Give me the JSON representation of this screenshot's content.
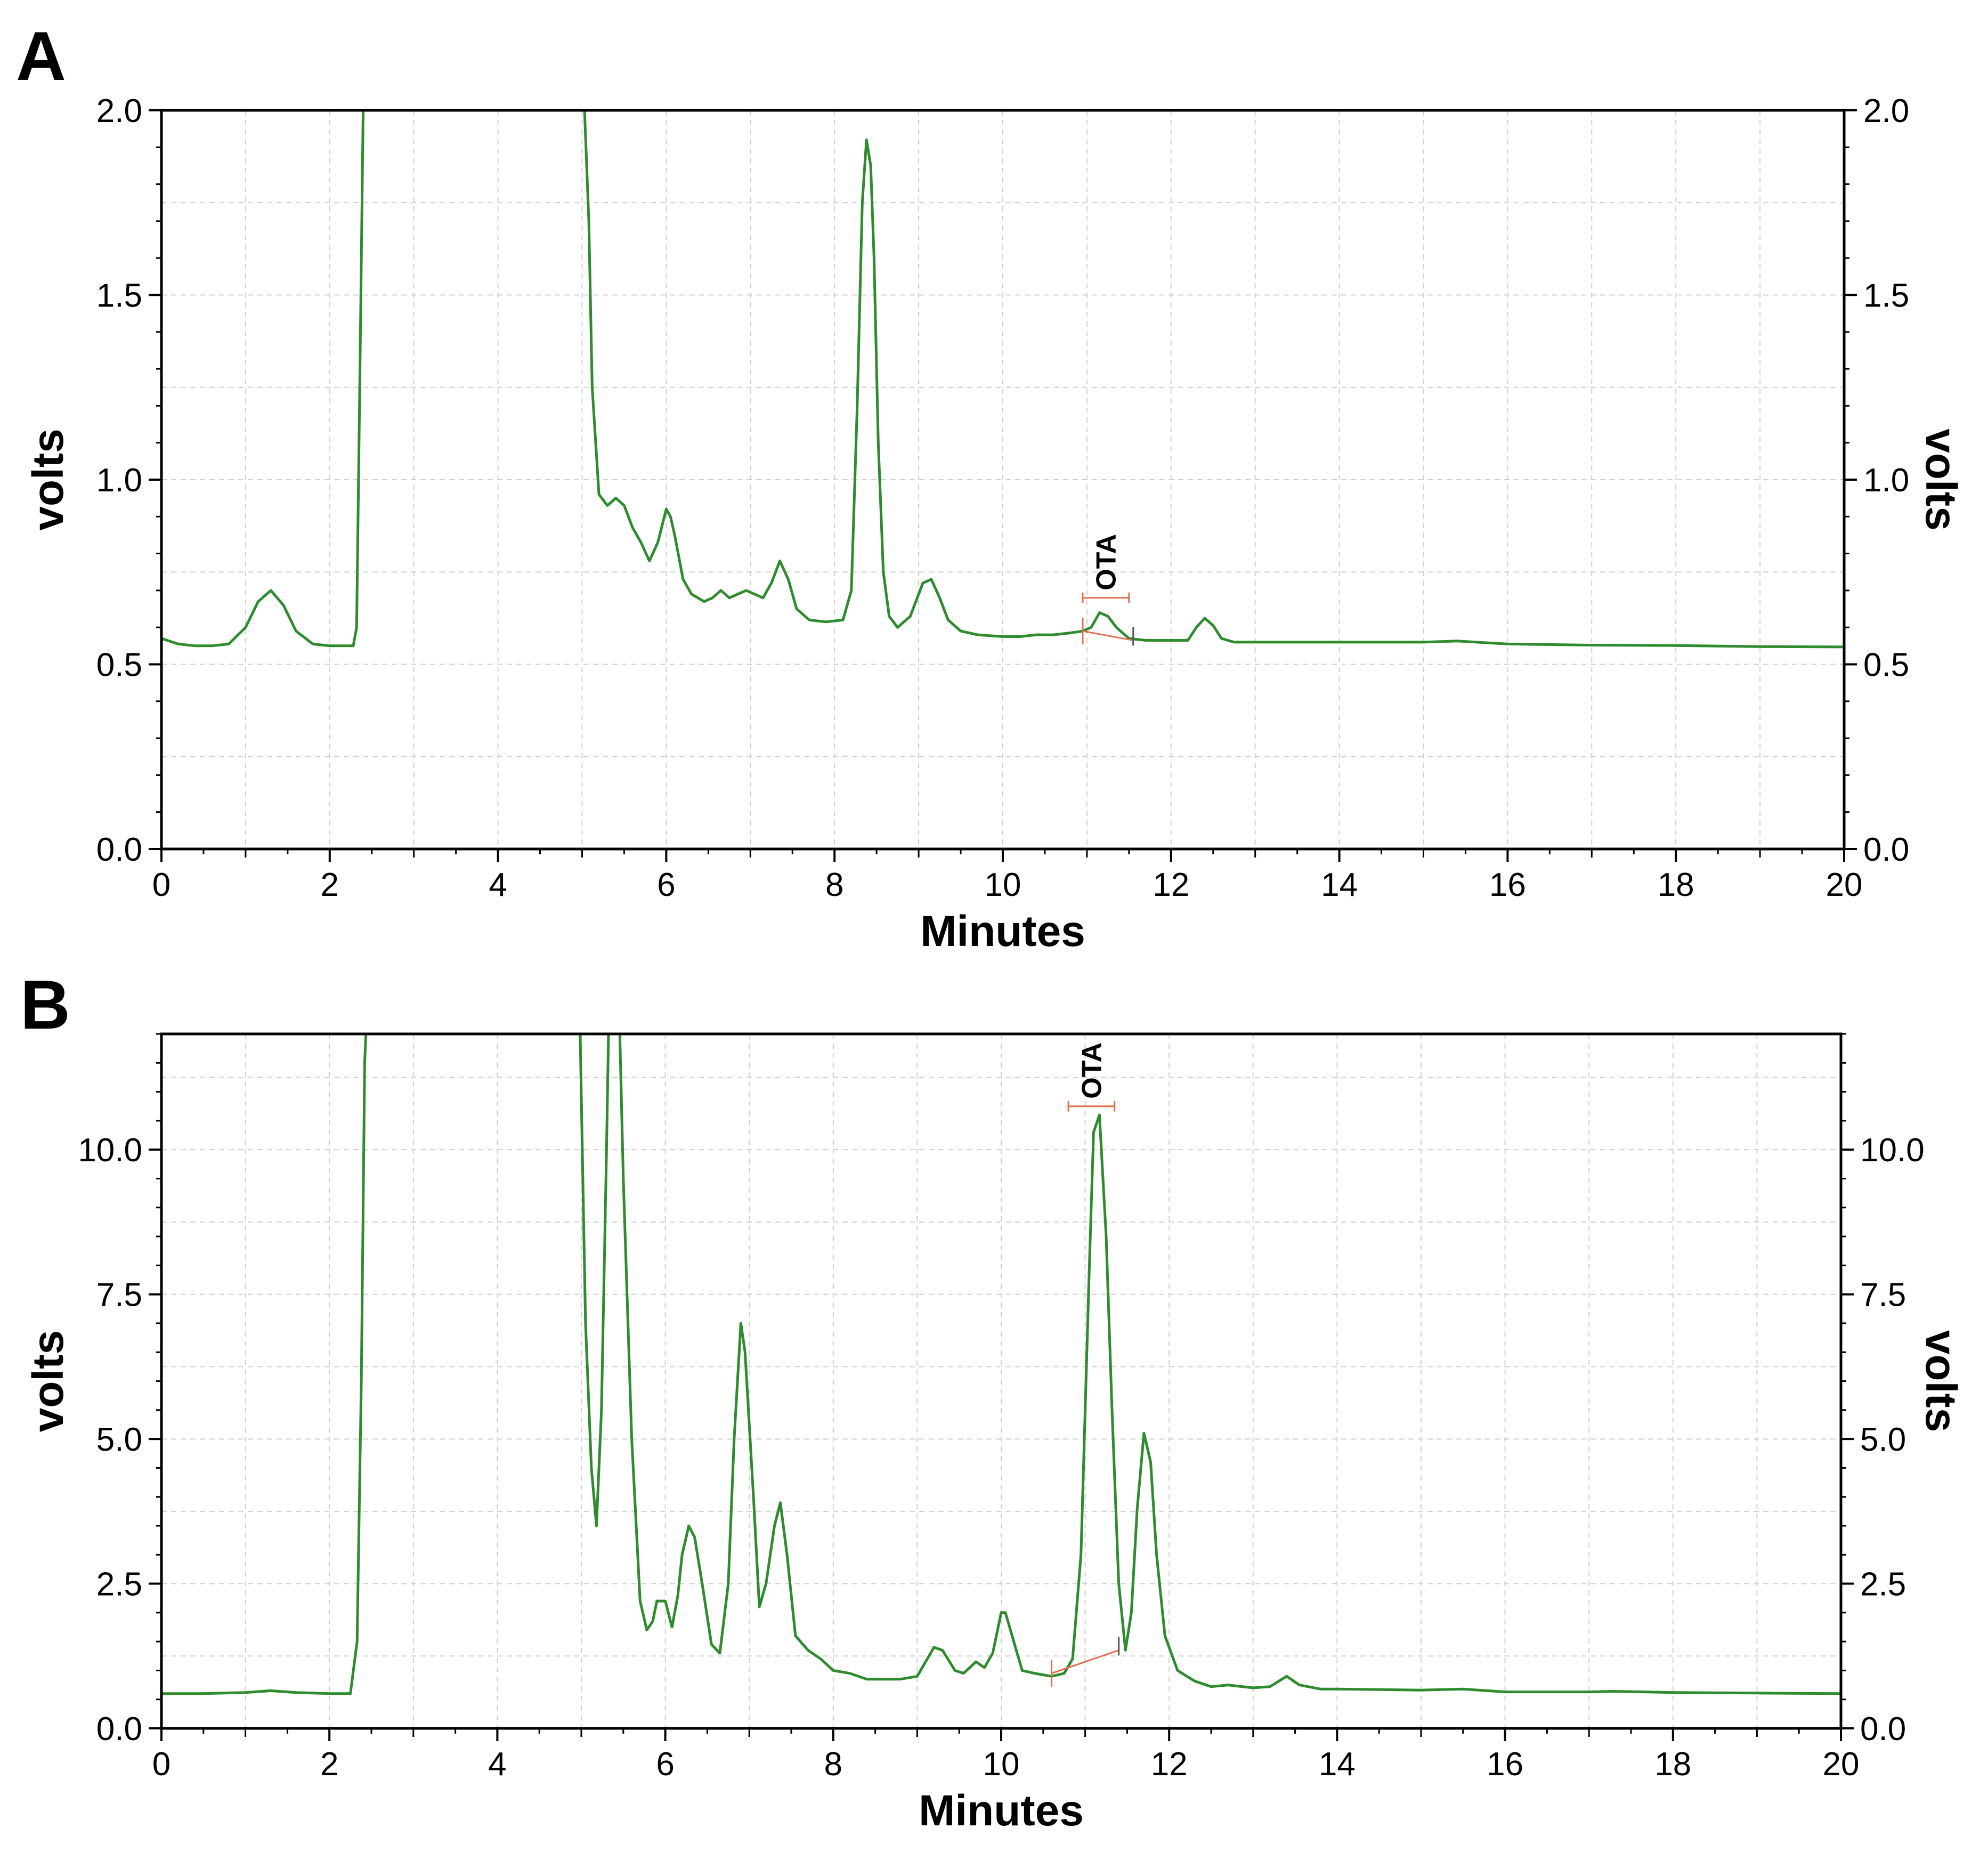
{
  "colors": {
    "trace": "#2e8b2e",
    "annotation": "#e07050",
    "axis": "#000000",
    "grid": "#d0d0d0"
  },
  "chart_data": [
    {
      "type": "line",
      "panel": "A",
      "title": "",
      "xlabel": "Minutes",
      "ylabel_left": "volts",
      "ylabel_right": "volts",
      "xlim": [
        0,
        20
      ],
      "ylim": [
        0,
        2.0
      ],
      "xticks": [
        0,
        2,
        4,
        6,
        8,
        10,
        12,
        14,
        16,
        18,
        20
      ],
      "xtick_labels": [
        "0",
        "2",
        "4",
        "6",
        "8",
        "10",
        "12",
        "14",
        "16",
        "18",
        "20"
      ],
      "yticks": [
        0.0,
        0.5,
        1.0,
        1.5,
        2.0
      ],
      "ytick_labels": [
        "0.0",
        "0.5",
        "1.0",
        "1.5",
        "2.0"
      ],
      "series": [
        {
          "name": "chromatogram",
          "x": [
            0,
            0.2,
            0.4,
            0.6,
            0.8,
            1.0,
            1.15,
            1.3,
            1.45,
            1.6,
            1.8,
            2.0,
            2.2,
            2.28,
            2.32,
            2.36,
            2.4,
            5.02,
            5.08,
            5.12,
            5.2,
            5.3,
            5.4,
            5.5,
            5.6,
            5.7,
            5.8,
            5.9,
            6.0,
            6.05,
            6.1,
            6.2,
            6.3,
            6.45,
            6.55,
            6.65,
            6.75,
            6.85,
            6.95,
            7.05,
            7.15,
            7.25,
            7.35,
            7.45,
            7.55,
            7.7,
            7.9,
            8.1,
            8.2,
            8.27,
            8.33,
            8.38,
            8.43,
            8.47,
            8.52,
            8.58,
            8.65,
            8.75,
            8.9,
            9.05,
            9.15,
            9.25,
            9.35,
            9.5,
            9.7,
            10.0,
            10.2,
            10.4,
            10.6,
            10.8,
            10.95,
            11.05,
            11.15,
            11.25,
            11.35,
            11.5,
            11.7,
            12.0,
            12.2,
            12.3,
            12.4,
            12.5,
            12.6,
            12.75,
            13.0,
            14.0,
            15.0,
            15.4,
            16.0,
            17.0,
            18.0,
            19.0,
            20.0
          ],
          "values": [
            0.57,
            0.555,
            0.55,
            0.55,
            0.555,
            0.6,
            0.67,
            0.7,
            0.66,
            0.59,
            0.555,
            0.55,
            0.55,
            0.55,
            0.6,
            1.3,
            2.05,
            2.05,
            1.7,
            1.25,
            0.96,
            0.93,
            0.95,
            0.93,
            0.87,
            0.83,
            0.78,
            0.83,
            0.92,
            0.9,
            0.85,
            0.73,
            0.69,
            0.67,
            0.68,
            0.7,
            0.68,
            0.69,
            0.7,
            0.69,
            0.68,
            0.72,
            0.78,
            0.73,
            0.65,
            0.62,
            0.615,
            0.62,
            0.7,
            1.2,
            1.75,
            1.92,
            1.85,
            1.6,
            1.1,
            0.75,
            0.63,
            0.6,
            0.63,
            0.72,
            0.73,
            0.68,
            0.62,
            0.59,
            0.58,
            0.575,
            0.575,
            0.58,
            0.58,
            0.585,
            0.59,
            0.6,
            0.64,
            0.63,
            0.6,
            0.57,
            0.565,
            0.565,
            0.565,
            0.6,
            0.625,
            0.605,
            0.57,
            0.56,
            0.56,
            0.56,
            0.56,
            0.563,
            0.555,
            0.552,
            0.551,
            0.548,
            0.547
          ]
        }
      ],
      "annotations": [
        {
          "label": "OTA",
          "x_start": 10.95,
          "x_end": 11.5,
          "y": 0.68,
          "baseline": [
            [
              10.95,
              0.59
            ],
            [
              11.55,
              0.565
            ]
          ]
        }
      ]
    },
    {
      "type": "line",
      "panel": "B",
      "title": "",
      "xlabel": "Minutes",
      "ylabel_left": "volts",
      "ylabel_right": "volts",
      "xlim": [
        0,
        20
      ],
      "ylim": [
        0,
        12.0
      ],
      "xticks": [
        0,
        2,
        4,
        6,
        8,
        10,
        12,
        14,
        16,
        18,
        20
      ],
      "xtick_labels": [
        "0",
        "2",
        "4",
        "6",
        "8",
        "10",
        "12",
        "14",
        "16",
        "18",
        "20"
      ],
      "yticks": [
        0.0,
        2.5,
        5.0,
        7.5,
        10.0
      ],
      "ytick_labels": [
        "0.0",
        "2.5",
        "5.0",
        "7.5",
        "10.0"
      ],
      "series": [
        {
          "name": "chromatogram",
          "x": [
            0,
            0.5,
            1.0,
            1.3,
            1.6,
            2.0,
            2.25,
            2.33,
            2.38,
            2.42,
            2.45,
            4.98,
            5.05,
            5.12,
            5.18,
            5.24,
            5.3,
            5.33,
            5.45,
            5.5,
            5.6,
            5.7,
            5.78,
            5.85,
            5.9,
            6.0,
            6.08,
            6.15,
            6.2,
            6.28,
            6.35,
            6.45,
            6.55,
            6.65,
            6.75,
            6.82,
            6.9,
            6.95,
            7.05,
            7.12,
            7.2,
            7.3,
            7.37,
            7.45,
            7.55,
            7.7,
            7.85,
            8.0,
            8.2,
            8.4,
            8.6,
            8.8,
            9.0,
            9.2,
            9.3,
            9.45,
            9.55,
            9.7,
            9.8,
            9.9,
            10.0,
            10.05,
            10.15,
            10.25,
            10.4,
            10.6,
            10.75,
            10.85,
            10.95,
            11.05,
            11.1,
            11.17,
            11.25,
            11.32,
            11.4,
            11.48,
            11.55,
            11.62,
            11.7,
            11.78,
            11.85,
            11.95,
            12.1,
            12.3,
            12.5,
            12.7,
            13.0,
            13.2,
            13.4,
            13.55,
            13.8,
            14.0,
            15.0,
            15.5,
            16.0,
            17.0,
            17.3,
            18.0,
            19.0,
            20.0
          ],
          "values": [
            0.6,
            0.6,
            0.62,
            0.65,
            0.62,
            0.6,
            0.6,
            1.5,
            6.0,
            11.5,
            12.5,
            12.5,
            7.0,
            4.5,
            3.5,
            5.5,
            10.0,
            12.5,
            12.5,
            9.5,
            5.0,
            2.2,
            1.7,
            1.85,
            2.2,
            2.2,
            1.75,
            2.3,
            3.0,
            3.5,
            3.3,
            2.4,
            1.45,
            1.3,
            2.5,
            5.0,
            7.0,
            6.5,
            4.0,
            2.1,
            2.5,
            3.5,
            3.9,
            3.0,
            1.6,
            1.35,
            1.2,
            1.0,
            0.95,
            0.85,
            0.85,
            0.85,
            0.9,
            1.4,
            1.35,
            1.0,
            0.95,
            1.15,
            1.05,
            1.3,
            2.0,
            2.0,
            1.5,
            1.0,
            0.95,
            0.9,
            0.95,
            1.2,
            3.0,
            8.0,
            10.3,
            10.6,
            8.5,
            5.5,
            2.5,
            1.35,
            2.0,
            3.8,
            5.1,
            4.6,
            3.0,
            1.6,
            1.0,
            0.82,
            0.72,
            0.75,
            0.7,
            0.72,
            0.9,
            0.75,
            0.68,
            0.68,
            0.66,
            0.68,
            0.63,
            0.63,
            0.64,
            0.62,
            0.61,
            0.6
          ]
        }
      ],
      "annotations": [
        {
          "label": "OTA",
          "x_start": 10.8,
          "x_end": 11.35,
          "y": 10.75,
          "baseline": [
            [
              10.6,
              0.95
            ],
            [
              11.4,
              1.35
            ]
          ]
        }
      ]
    }
  ]
}
